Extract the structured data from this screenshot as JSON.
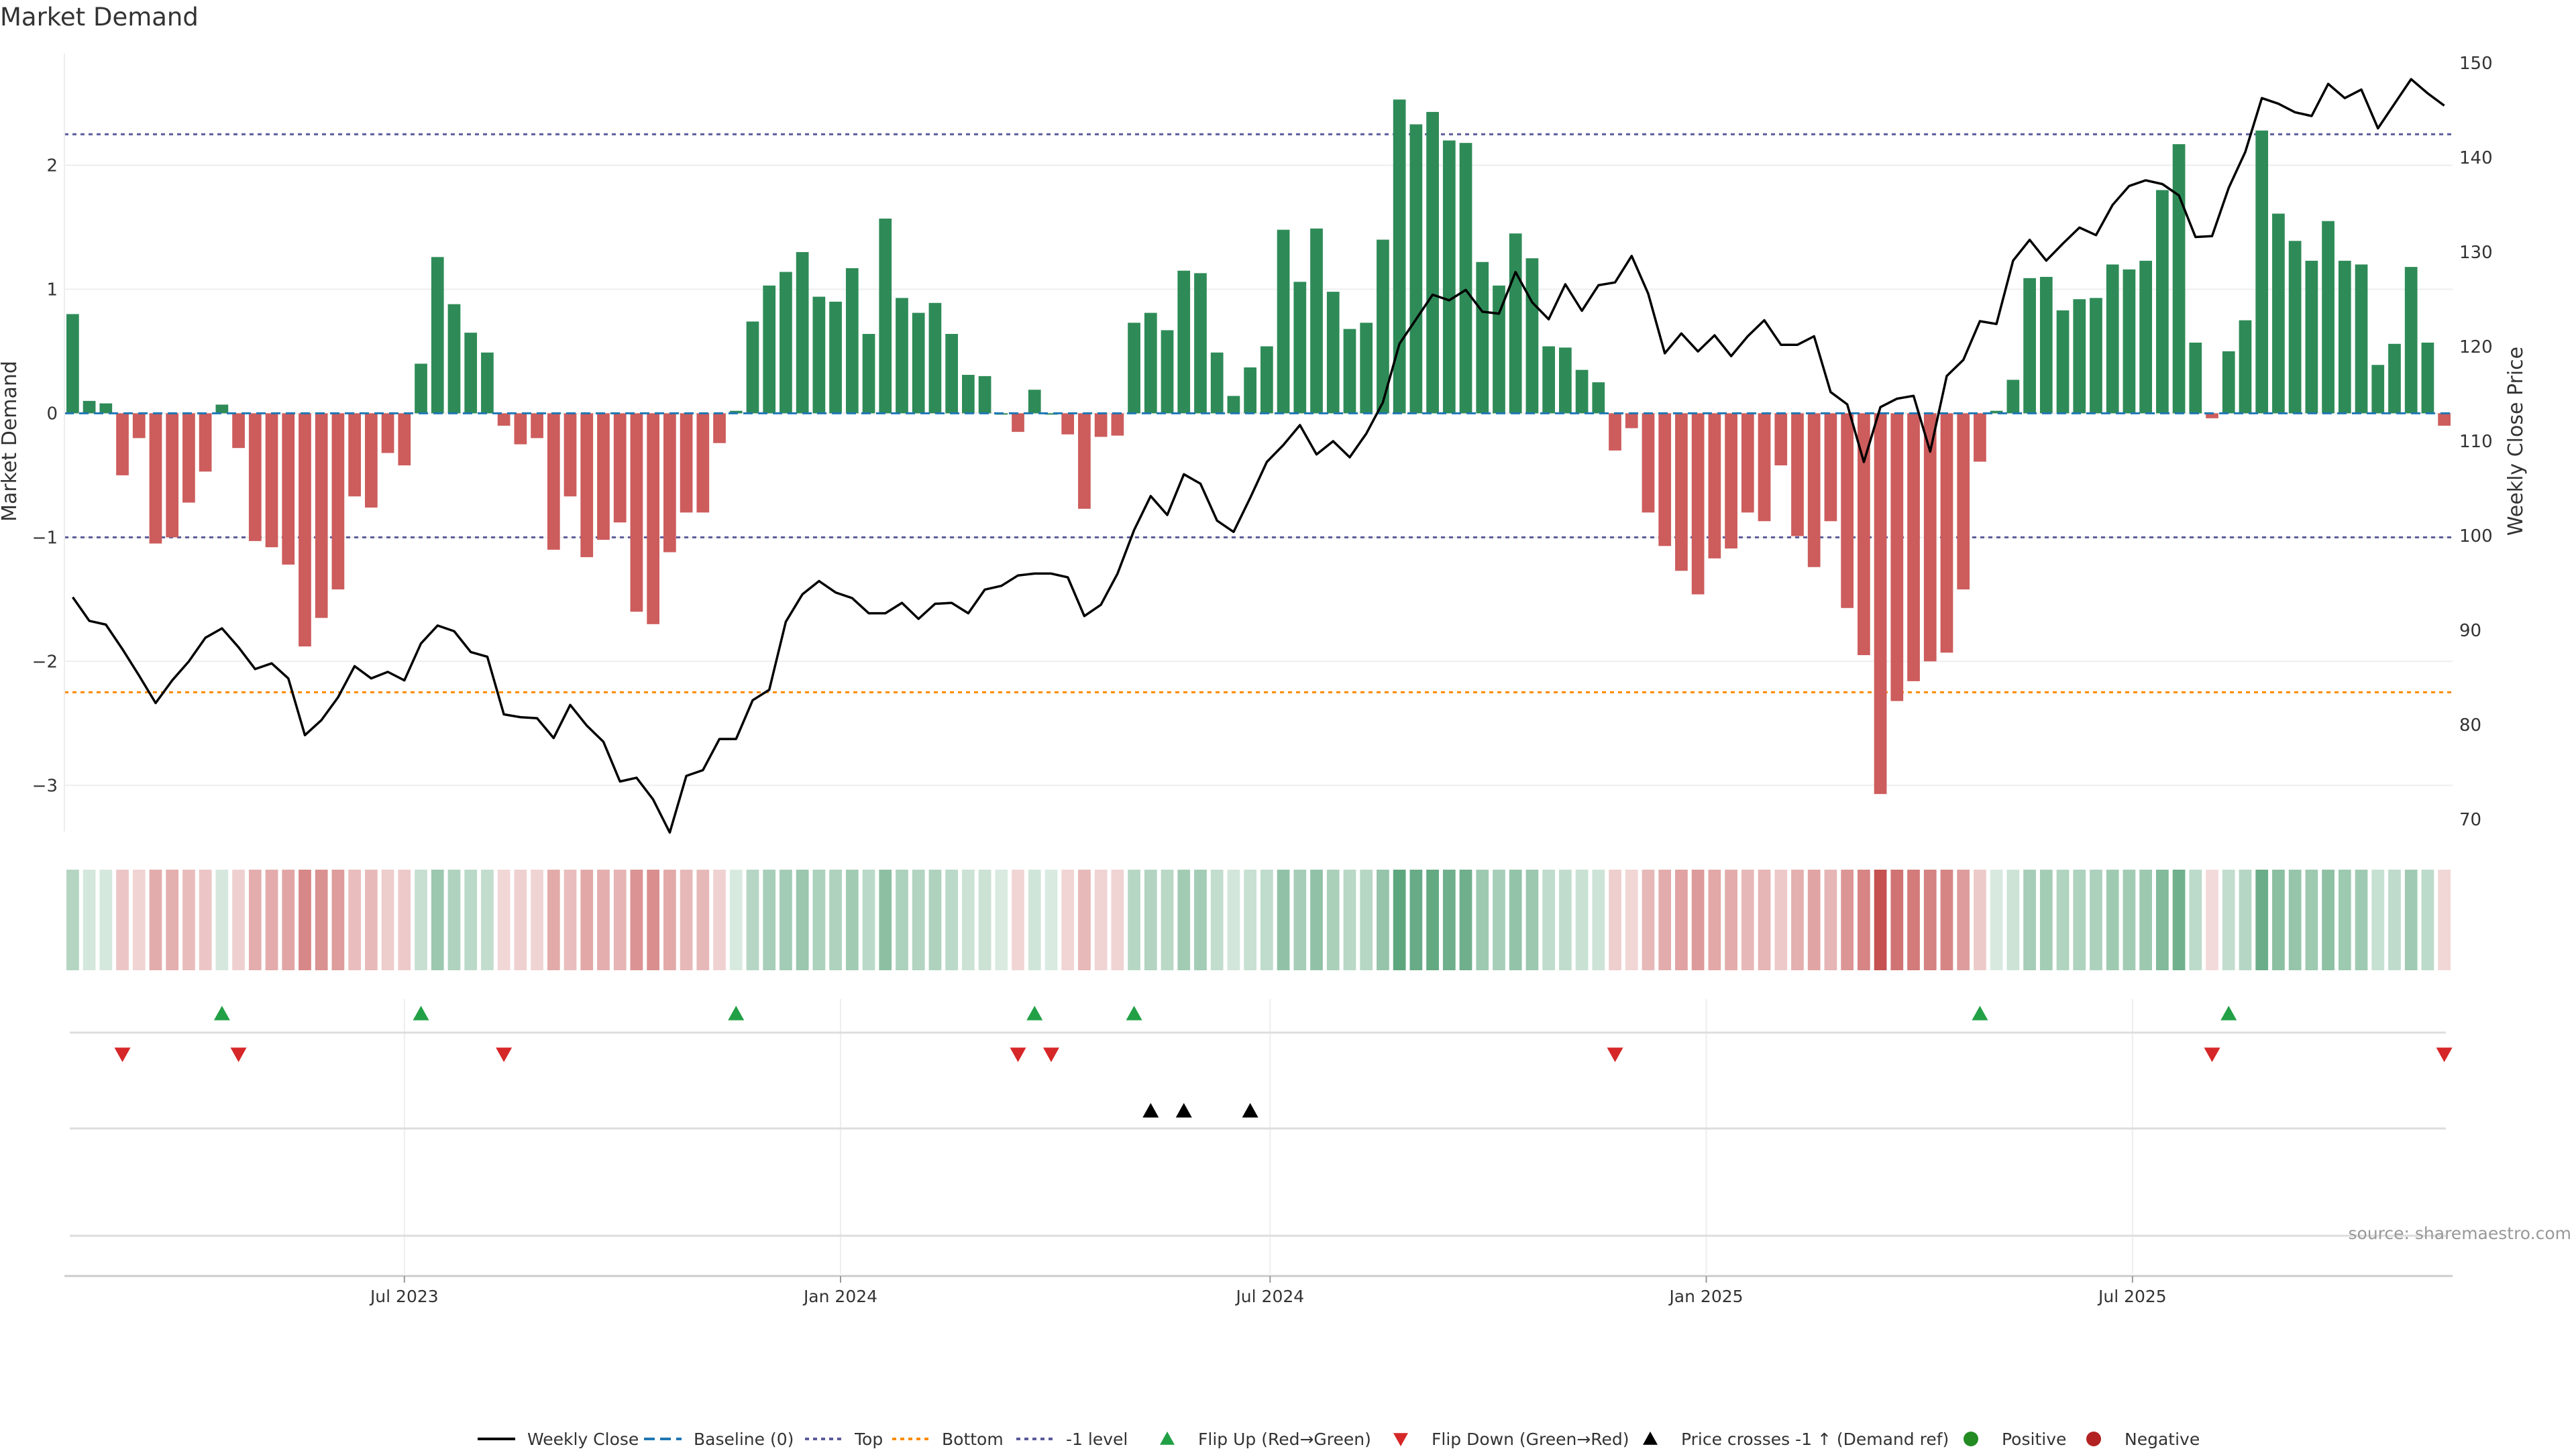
{
  "title": "Market Demand",
  "source": "source: sharemaestro.com",
  "colors": {
    "positive": "#2e8b57",
    "negative": "#cd5c5c",
    "price": "#000000",
    "top": "#5a5a9a",
    "bottom": "#ff8c00",
    "minus1": "#5a5a9a",
    "baseline": "#1f77b4",
    "flip_up": "#22a046",
    "flip_down": "#d62728",
    "positive_dot": "#228b22",
    "negative_dot": "#b22222"
  },
  "chart_data": {
    "type": "bar+line",
    "title": "Market Demand",
    "ylabel": "Market Demand",
    "y2label": "Weekly Close Price",
    "ylim": [
      -3.35,
      2.9
    ],
    "y2lim": [
      69,
      151
    ],
    "yticks": [
      -3,
      -2,
      -1,
      0,
      1,
      2
    ],
    "yticklabels": [
      "−3",
      "−2",
      "−1",
      "0",
      "1",
      "2"
    ],
    "y2ticks": [
      70,
      80,
      90,
      100,
      110,
      120,
      130,
      140,
      150
    ],
    "y2ticklabels": [
      "70",
      "80",
      "90",
      "100",
      "110",
      "120",
      "130",
      "140",
      "150"
    ],
    "xticks": [
      {
        "week": 20.5,
        "label": "Jul 2023"
      },
      {
        "week": 46.8,
        "label": "Jan 2024"
      },
      {
        "week": 72.7,
        "label": "Jul 2024"
      },
      {
        "week": 99.0,
        "label": "Jan 2025"
      },
      {
        "week": 124.7,
        "label": "Jul 2025"
      }
    ],
    "levels": {
      "top": 2.25,
      "bottom": -2.25,
      "minus_one": -1,
      "baseline": 0
    },
    "demand": [
      0.8,
      0.1,
      0.08,
      -0.5,
      -0.2,
      -1.05,
      -1.0,
      -0.72,
      -0.47,
      0.07,
      -0.28,
      -1.03,
      -1.08,
      -1.22,
      -1.88,
      -1.65,
      -1.42,
      -0.67,
      -0.76,
      -0.32,
      -0.42,
      0.4,
      1.26,
      0.88,
      0.65,
      0.49,
      -0.1,
      -0.25,
      -0.2,
      -1.1,
      -0.67,
      -1.16,
      -1.02,
      -0.88,
      -1.6,
      -1.7,
      -1.12,
      -0.8,
      -0.8,
      -0.24,
      0.02,
      0.74,
      1.03,
      1.14,
      1.3,
      0.94,
      0.9,
      1.17,
      0.64,
      1.57,
      0.93,
      0.81,
      0.89,
      0.64,
      0.31,
      0.3,
      0.0,
      -0.15,
      0.19,
      0.0,
      -0.17,
      -0.77,
      -0.19,
      -0.18,
      0.73,
      0.81,
      0.67,
      1.15,
      1.13,
      0.49,
      0.14,
      0.37,
      0.54,
      1.48,
      1.06,
      1.49,
      0.98,
      0.68,
      0.73,
      1.4,
      2.53,
      2.33,
      2.43,
      2.2,
      2.18,
      1.22,
      1.03,
      1.45,
      1.25,
      0.54,
      0.53,
      0.35,
      0.25,
      -0.3,
      -0.12,
      -0.8,
      -1.07,
      -1.27,
      -1.46,
      -1.17,
      -1.09,
      -0.8,
      -0.87,
      -0.42,
      -0.99,
      -1.24,
      -0.87,
      -1.57,
      -1.95,
      -3.07,
      -2.32,
      -2.16,
      -2.0,
      -1.93,
      -1.42,
      -0.39,
      0.02,
      0.27,
      1.09,
      1.1,
      0.83,
      0.92,
      0.93,
      1.2,
      1.16,
      1.23,
      1.8,
      2.17,
      0.57,
      -0.04,
      0.5,
      0.75,
      2.28,
      1.61,
      1.39,
      1.23,
      1.55,
      1.23,
      1.2,
      0.39,
      0.56,
      1.18,
      0.57,
      -0.1
    ],
    "price": [
      93.5,
      91.0,
      90.6,
      88.0,
      85.2,
      82.3,
      84.7,
      86.7,
      89.2,
      90.2,
      88.2,
      85.9,
      86.5,
      84.9,
      78.9,
      80.5,
      82.9,
      86.2,
      84.9,
      85.6,
      84.7,
      88.6,
      90.5,
      89.9,
      87.7,
      87.2,
      81.1,
      80.8,
      80.7,
      78.6,
      82.1,
      79.9,
      78.2,
      74.0,
      74.4,
      72.1,
      68.6,
      74.6,
      75.2,
      78.5,
      78.5,
      82.6,
      83.7,
      90.9,
      93.8,
      95.2,
      94.0,
      93.4,
      91.8,
      91.8,
      92.9,
      91.2,
      92.8,
      92.9,
      91.8,
      94.3,
      94.7,
      95.8,
      96.0,
      96.0,
      95.6,
      91.5,
      92.7,
      96.0,
      100.6,
      104.2,
      102.2,
      106.5,
      105.5,
      101.6,
      100.4,
      104.0,
      107.8,
      109.6,
      111.7,
      108.6,
      110.0,
      108.3,
      110.8,
      114.1,
      120.3,
      122.9,
      125.5,
      124.9,
      126.0,
      123.7,
      123.5,
      127.9,
      124.7,
      122.9,
      126.6,
      123.8,
      126.5,
      126.8,
      129.6,
      125.6,
      119.3,
      121.4,
      119.5,
      121.2,
      119.0,
      121.1,
      122.8,
      120.2,
      120.2,
      121.1,
      115.2,
      113.9,
      107.8,
      113.6,
      114.5,
      114.8,
      108.9,
      116.9,
      118.6,
      122.7,
      122.4,
      129.1,
      131.3,
      129.1,
      130.9,
      132.6,
      131.8,
      135.0,
      137.0,
      137.6,
      137.2,
      136.0,
      131.6,
      131.7,
      136.8,
      140.6,
      146.3,
      145.7,
      144.8,
      144.4,
      147.8,
      146.3,
      147.2,
      143.1,
      145.7,
      148.3,
      146.8,
      145.5
    ],
    "flip_up_weeks": [
      9,
      21,
      40,
      58,
      64,
      115,
      130
    ],
    "flip_down_weeks": [
      3,
      10,
      26,
      57,
      59,
      93,
      129,
      143
    ],
    "price_cross_weeks": [
      65,
      67,
      71
    ],
    "legend": [
      "Weekly Close",
      "Baseline (0)",
      "Top",
      "Bottom",
      "-1 level",
      "Flip Up (Red→Green)",
      "Flip Down (Green→Red)",
      "Price crosses -1 ↑ (Demand ref)",
      "Positive",
      "Negative"
    ]
  }
}
